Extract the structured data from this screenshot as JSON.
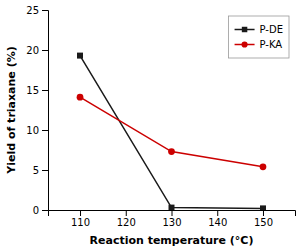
{
  "chart_data": {
    "type": "line",
    "xlabel": "Reaction temperature (°C)",
    "ylabel": "Yield of triaxane (%)",
    "x": [
      110,
      130,
      150
    ],
    "series": [
      {
        "name": "P-DE",
        "color": "#1a1a1a",
        "marker": "square",
        "values": [
          19.3,
          0.3,
          0.2
        ]
      },
      {
        "name": "P-KA",
        "color": "#cc0000",
        "marker": "circle",
        "values": [
          14.1,
          7.3,
          5.4
        ]
      }
    ],
    "xlim": [
      103,
      157
    ],
    "ylim": [
      0,
      25
    ],
    "xticks": [
      110,
      120,
      130,
      140,
      150
    ],
    "yticks": [
      0,
      5,
      10,
      15,
      20,
      25
    ],
    "legend": "upper right",
    "grid": false
  }
}
